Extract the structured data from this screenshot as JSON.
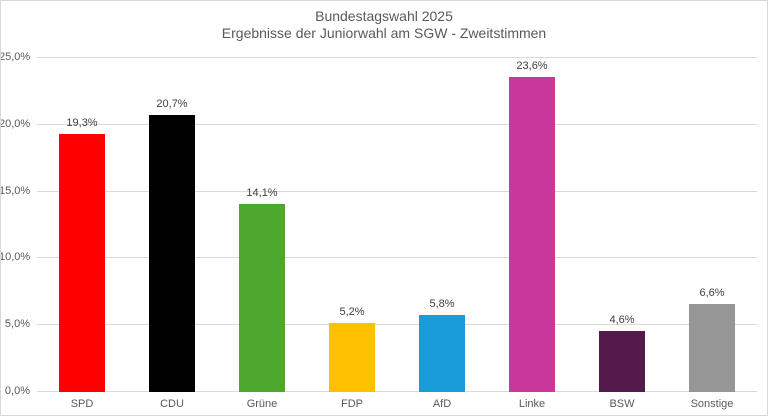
{
  "title": {
    "line1": "Bundestagswahl 2025",
    "line2": "Ergebnisse der Juniorwahl am SGW - Zweitstimmen"
  },
  "chart_data": {
    "type": "bar",
    "title": "Bundestagswahl 2025",
    "subtitle": "Ergebnisse der Juniorwahl am SGW - Zweitstimmen",
    "categories": [
      "SPD",
      "CDU",
      "Grüne",
      "FDP",
      "AfD",
      "Linke",
      "BSW",
      "Sonstige"
    ],
    "values": [
      19.3,
      20.7,
      14.1,
      5.2,
      5.8,
      23.6,
      4.6,
      6.6
    ],
    "value_labels": [
      "19,3%",
      "20,7%",
      "14,1%",
      "5,2%",
      "5,8%",
      "23,6%",
      "4,6%",
      "6,6%"
    ],
    "bar_colors": [
      "#FF0000",
      "#000000",
      "#4EA72E",
      "#FFC000",
      "#199CD8",
      "#C9379B",
      "#551A4C",
      "#969696"
    ],
    "xlabel": "",
    "ylabel": "",
    "ylim": [
      0,
      25
    ],
    "y_ticks": [
      "25,0%",
      "20,0%",
      "15,0%",
      "10,0%",
      "5,0%",
      "0,0%"
    ],
    "grid": true,
    "legend": false
  },
  "colors": {
    "gridline": "#DADADA",
    "axis_text": "#595959",
    "value_text": "#404040",
    "title_text": "#595959",
    "border": "#D9D9D9",
    "background": "#FFFFFF"
  }
}
